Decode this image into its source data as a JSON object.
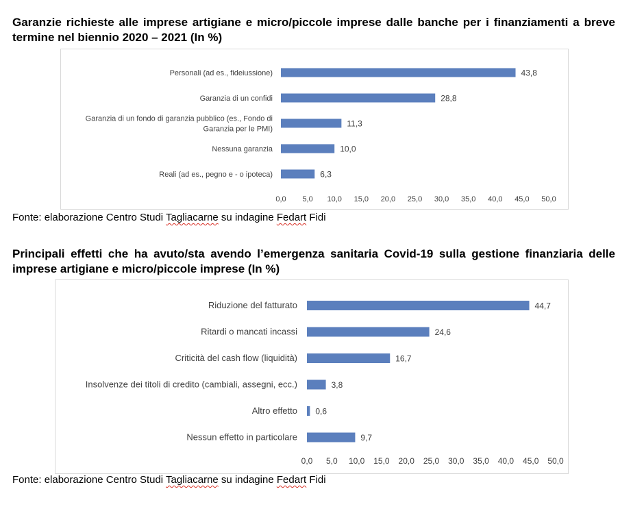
{
  "sections": [
    {
      "title": "Garanzie richieste alle imprese artigiane e micro/piccole imprese dalle banche per i finanziamenti a breve termine nel biennio 2020 – 2021 (In %)",
      "source": {
        "prefix": "Fonte: elaborazione Centro Studi ",
        "word1": "Tagliacarne",
        "middle": " su indagine ",
        "word2": "Fedart",
        "suffix": " Fidi"
      }
    },
    {
      "title": "Principali effetti che ha avuto/sta avendo l’emergenza sanitaria Covid-19 sulla gestione finanziaria delle imprese artigiane e micro/piccole imprese (In %)",
      "source": {
        "prefix": "Fonte: elaborazione Centro Studi ",
        "word1": "Tagliacarne",
        "middle": " su indagine ",
        "word2": "Fedart",
        "suffix": " Fidi"
      }
    }
  ],
  "chart_data": [
    {
      "type": "bar",
      "orientation": "horizontal",
      "title": "Garanzie richieste alle imprese artigiane e micro/piccole imprese dalle banche per i finanziamenti a breve termine nel biennio 2020 – 2021 (In %)",
      "categories": [
        [
          "Personali (ad es., fideiussione)"
        ],
        [
          "Garanzia di un confidi"
        ],
        [
          "Garanzia di un fondo di garanzia pubblico (es., Fondo di",
          "Garanzia per le PMI)"
        ],
        [
          "Nessuna garanzia"
        ],
        [
          "Reali (ad es., pegno e - o ipoteca)"
        ]
      ],
      "values": [
        43.8,
        28.8,
        11.3,
        10.0,
        6.3
      ],
      "value_labels": [
        "43,8",
        "28,8",
        "11,3",
        "10,0",
        "6,3"
      ],
      "xlim": [
        0,
        50
      ],
      "ticks": [
        "0,0",
        "5,0",
        "10,0",
        "15,0",
        "20,0",
        "25,0",
        "30,0",
        "35,0",
        "40,0",
        "45,0",
        "50,0"
      ],
      "grid": false,
      "bar_color": "#5b7fbd"
    },
    {
      "type": "bar",
      "orientation": "horizontal",
      "title": "Principali effetti che ha avuto/sta avendo l’emergenza sanitaria Covid-19 sulla gestione finanziaria delle imprese artigiane e micro/piccole imprese (In %)",
      "categories": [
        [
          "Riduzione del fatturato"
        ],
        [
          "Ritardi o mancati incassi"
        ],
        [
          "Criticità del cash flow (liquidità)"
        ],
        [
          "Insolvenze dei titoli di credito (cambiali, assegni, ecc.)"
        ],
        [
          "Altro effetto"
        ],
        [
          "Nessun effetto in particolare"
        ]
      ],
      "values": [
        44.7,
        24.6,
        16.7,
        3.8,
        0.6,
        9.7
      ],
      "value_labels": [
        "44,7",
        "24,6",
        "16,7",
        "3,8",
        "0,6",
        "9,7"
      ],
      "xlim": [
        0,
        50
      ],
      "ticks": [
        "0,0",
        "5,0",
        "10,0",
        "15,0",
        "20,0",
        "25,0",
        "30,0",
        "35,0",
        "40,0",
        "45,0",
        "50,0"
      ],
      "grid": false,
      "bar_color": "#5b7fbd"
    }
  ]
}
